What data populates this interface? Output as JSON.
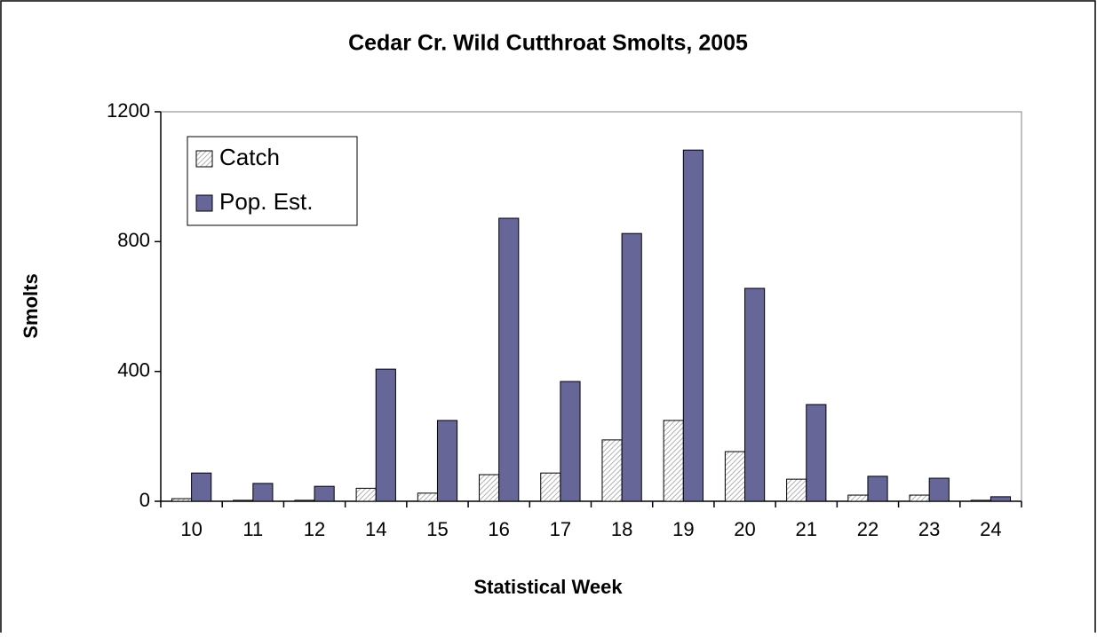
{
  "chart_data": {
    "type": "bar",
    "title": "Cedar Cr. Wild Cutthroat Smolts, 2005",
    "x_label": "Statistical Week",
    "y_label": "Smolts",
    "categories": [
      "10",
      "11",
      "12",
      "14",
      "15",
      "16",
      "17",
      "18",
      "19",
      "20",
      "21",
      "22",
      "23",
      "24"
    ],
    "series": [
      {
        "name": "Catch",
        "color": "#b0b0b0",
        "pattern": "hatch",
        "values": [
          8,
          3,
          3,
          40,
          25,
          82,
          87,
          189,
          249,
          153,
          68,
          19,
          19,
          3
        ]
      },
      {
        "name": "Pop. Est.",
        "color": "#666699",
        "values": [
          87,
          55,
          46,
          407,
          249,
          872,
          369,
          825,
          1082,
          656,
          298,
          77,
          71,
          14
        ]
      }
    ],
    "ylim": [
      0,
      1200
    ],
    "yticks": [
      0,
      400,
      800,
      1200
    ],
    "grid": false,
    "legend": "upper left"
  }
}
